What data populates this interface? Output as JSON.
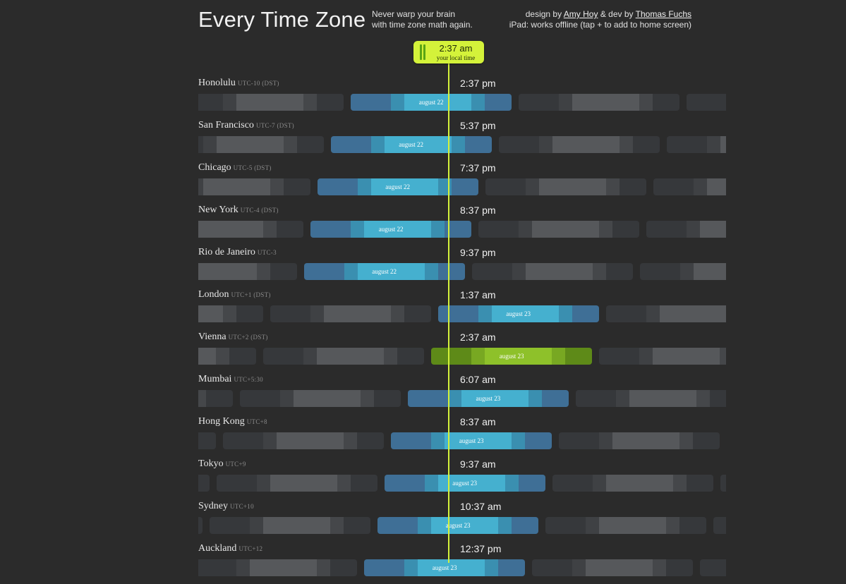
{
  "header": {
    "title": "Every Time Zone",
    "tagline_line1": "Never warp your brain",
    "tagline_line2": "with time zone math again.",
    "credits_design_prefix": "design by",
    "credits_designer": "Amy Hoy",
    "credits_dev_prefix": "& dev by",
    "credits_developer": "Thomas Fuchs",
    "credits_ipad": "iPad: works offline (tap + to add to home screen)"
  },
  "local_time": {
    "time": "2:37 am",
    "label": "your local time"
  },
  "colors": {
    "background": "#2b2b2b",
    "accent": "#d4f23a",
    "day_blue": "#3f6f96",
    "day_cyan": "#45b0cf",
    "night_gray": "#3d3f42",
    "local_green": "#8ec12a"
  },
  "zones": [
    {
      "city": "Honolulu",
      "offset": "UTC-10 (DST)",
      "time": "2:37 pm",
      "date": "august 22",
      "current_day_start": -3.625
    },
    {
      "city": "San Francisco",
      "offset": "UTC-7 (DST)",
      "time": "5:37 pm",
      "date": "august 22",
      "current_day_start": -4.625
    },
    {
      "city": "Chicago",
      "offset": "UTC-5 (DST)",
      "time": "7:37 pm",
      "date": "august 22",
      "current_day_start": -5.291
    },
    {
      "city": "New York",
      "offset": "UTC-4 (DST)",
      "time": "8:37 pm",
      "date": "august 22",
      "current_day_start": -5.625
    },
    {
      "city": "Rio de Janeiro",
      "offset": "UTC-3",
      "time": "9:37 pm",
      "date": "august 22",
      "current_day_start": -5.958
    },
    {
      "city": "London",
      "offset": "UTC+1 (DST)",
      "time": "1:37 am",
      "date": "august 23",
      "current_day_start": 0.0
    },
    {
      "city": "Vienna",
      "offset": "UTC+2 (DST)",
      "time": "2:37 am",
      "date": "august 23",
      "current_day_start": 0.0,
      "is_local": true
    },
    {
      "city": "Mumbai",
      "offset": "UTC+5:30",
      "time": "6:07 am",
      "date": "august 23",
      "current_day_start": 0.0
    },
    {
      "city": "Hong Kong",
      "offset": "UTC+8",
      "time": "8:37 am",
      "date": "august 23",
      "current_day_start": 0.0
    },
    {
      "city": "Tokyo",
      "offset": "UTC+9",
      "time": "9:37 am",
      "date": "august 23",
      "current_day_start": 0.0
    },
    {
      "city": "Sydney",
      "offset": "UTC+10",
      "time": "10:37 am",
      "date": "august 23",
      "current_day_start": 0.0
    },
    {
      "city": "Auckland",
      "offset": "UTC+12",
      "time": "12:37 pm",
      "date": "august 23",
      "current_day_start": 0.0
    }
  ]
}
